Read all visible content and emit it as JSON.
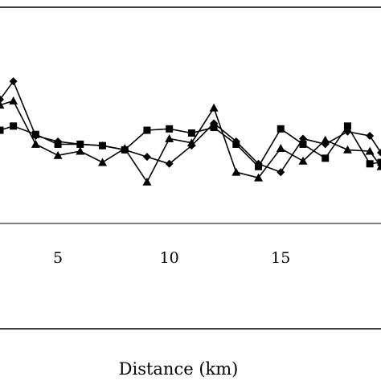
{
  "chart_data": {
    "type": "line",
    "xlabel": "Distance (km)",
    "ylabel": "",
    "title": "",
    "x_ticks": [
      5,
      10,
      15
    ],
    "xlim": [
      2.4,
      19.5
    ],
    "ylim": [
      -1.3,
      1.0
    ],
    "grid": false,
    "series": [
      {
        "marker": "diamond",
        "x": [
          2.4,
          3,
          4,
          5,
          6,
          7,
          8,
          9,
          10,
          11,
          12,
          13,
          14,
          15,
          16,
          17,
          18,
          19,
          19.5
        ],
        "y": [
          0.34,
          0.47,
          0.08,
          0.04,
          0.02,
          0.01,
          -0.02,
          -0.07,
          -0.12,
          0.01,
          0.17,
          0.04,
          -0.12,
          -0.18,
          0.06,
          0.02,
          0.11,
          0.08,
          -0.04
        ]
      },
      {
        "marker": "square",
        "x": [
          2.4,
          3,
          4,
          5,
          6,
          7,
          8,
          9,
          10,
          11,
          12,
          13,
          14,
          15,
          16,
          17,
          18,
          19,
          19.5
        ],
        "y": [
          0.12,
          0.15,
          0.09,
          0.02,
          0.02,
          0.01,
          -0.02,
          0.12,
          0.13,
          0.1,
          0.14,
          0.02,
          -0.14,
          0.13,
          0.02,
          -0.08,
          0.15,
          -0.12,
          -0.11
        ]
      },
      {
        "marker": "triangle",
        "x": [
          2.4,
          3,
          4,
          5,
          6,
          7,
          8,
          9,
          10,
          11,
          12,
          13,
          14,
          15,
          16,
          17,
          18,
          19,
          19.5
        ],
        "y": [
          0.3,
          0.33,
          0.02,
          -0.06,
          -0.03,
          -0.11,
          -0.01,
          -0.25,
          0.06,
          0.03,
          0.28,
          -0.18,
          -0.22,
          -0.01,
          -0.1,
          0.05,
          -0.02,
          -0.03,
          -0.14
        ]
      }
    ]
  }
}
